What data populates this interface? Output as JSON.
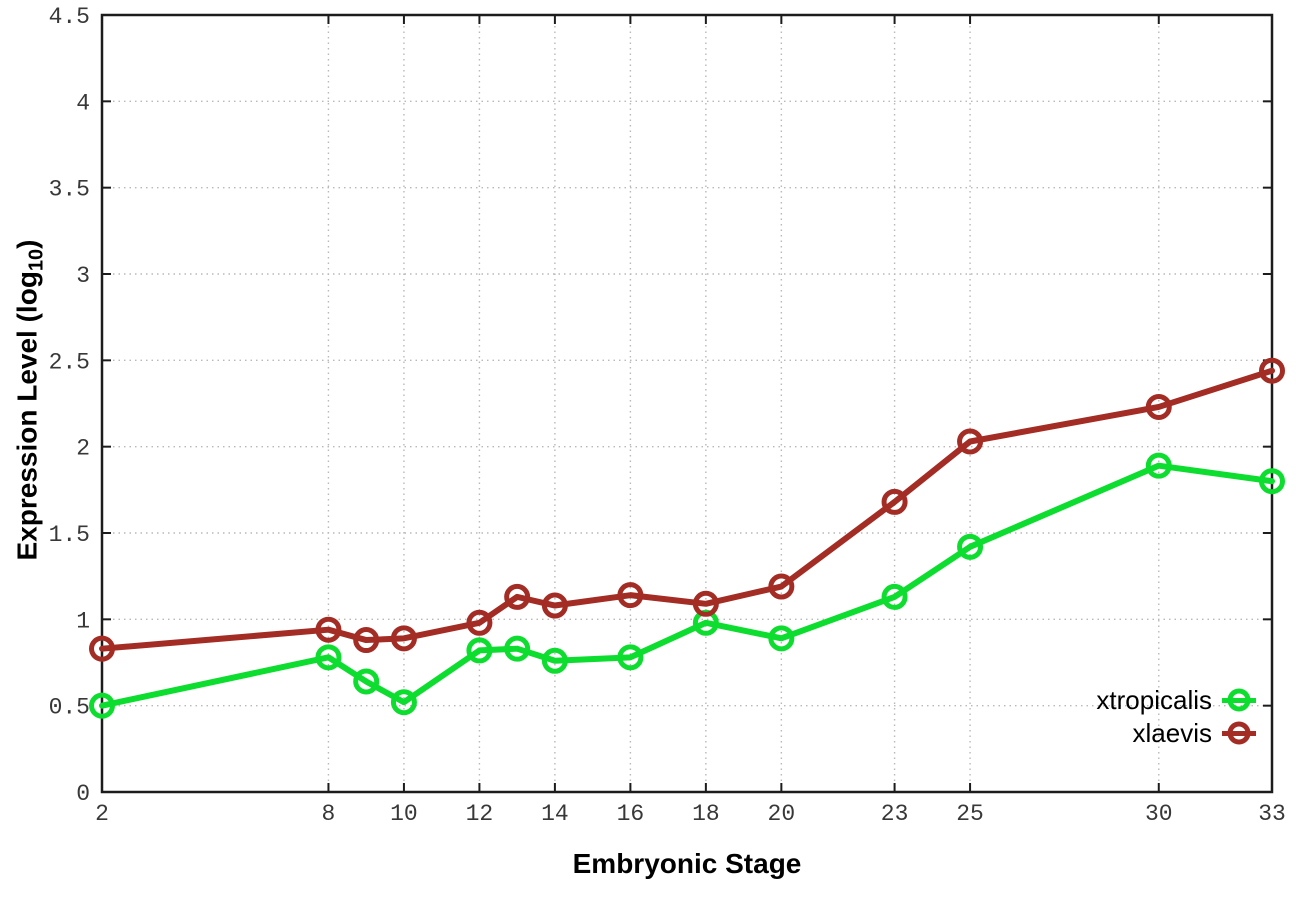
{
  "chart_data": {
    "type": "line",
    "title": "",
    "xlabel": "Embryonic Stage",
    "ylabel": {
      "pre": "Expression Level (log",
      "sub": "10",
      "post": ")"
    },
    "x": [
      2,
      8,
      9,
      10,
      12,
      13,
      14,
      16,
      18,
      20,
      23,
      25,
      30,
      33
    ],
    "series": [
      {
        "name": "xtropicalis",
        "color": "#0ddd2e",
        "values": [
          0.5,
          0.78,
          0.64,
          0.52,
          0.82,
          0.83,
          0.76,
          0.78,
          0.98,
          0.89,
          1.13,
          1.42,
          1.89,
          1.8
        ]
      },
      {
        "name": "xlaevis",
        "color": "#a32c24",
        "values": [
          0.83,
          0.94,
          0.88,
          0.89,
          0.98,
          1.13,
          1.08,
          1.14,
          1.09,
          1.19,
          1.68,
          2.03,
          2.23,
          2.44
        ]
      }
    ],
    "xlim": [
      2,
      33
    ],
    "ylim": [
      0,
      4.5
    ],
    "xticks": [
      2,
      8,
      10,
      12,
      14,
      16,
      18,
      20,
      23,
      25,
      30,
      33
    ],
    "xtick_labels": [
      "2",
      "8",
      "10",
      "12",
      "14",
      "16",
      "18",
      "20",
      "23",
      "25",
      "30",
      "33"
    ],
    "yticks": [
      0,
      0.5,
      1,
      1.5,
      2,
      2.5,
      3,
      3.5,
      4,
      4.5
    ],
    "ytick_labels": [
      "0",
      "0.5",
      "1",
      "1.5",
      "2",
      "2.5",
      "3",
      "3.5",
      "4",
      "4.5"
    ],
    "grid": "dotted",
    "legend_position": "bottom-right-inside",
    "colors": {
      "frame": "#1c1c1c",
      "grid": "#b9b9b9",
      "tick_text": "#383838"
    }
  }
}
